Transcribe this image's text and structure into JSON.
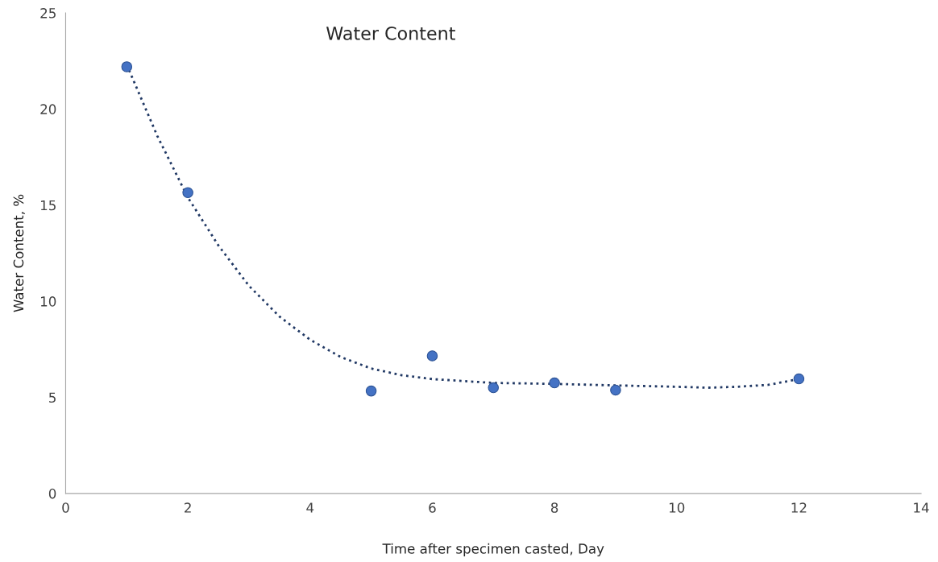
{
  "chart_data": {
    "type": "scatter",
    "title": "Water Content",
    "xlabel": "Time after specimen casted, Day",
    "ylabel": "Water Content, %",
    "xlim": [
      0,
      14
    ],
    "xticks": [
      0,
      2,
      4,
      6,
      8,
      10,
      12,
      14
    ],
    "ylim": [
      0,
      25
    ],
    "yticks": [
      0,
      5,
      10,
      15,
      20,
      25
    ],
    "grid": false,
    "marker": "circle",
    "series": [
      {
        "color": "#4472c4",
        "x": [
          1,
          2,
          5,
          6,
          7,
          8,
          9,
          12
        ],
        "values": [
          22.2,
          15.65,
          5.33,
          7.16,
          5.5,
          5.75,
          5.38,
          5.96
        ]
      },
      {
        "type": "line",
        "color": "#203864",
        "line_style": "dotted",
        "marker": "none",
        "x": [
          1,
          1.5,
          2,
          2.5,
          3,
          3.5,
          4,
          4.5,
          5,
          5.5,
          6,
          7,
          8,
          9,
          10,
          10.5,
          11,
          11.5,
          12
        ],
        "values": [
          22.3,
          18.6,
          15.4,
          12.9,
          10.8,
          9.2,
          8.0,
          7.1,
          6.5,
          6.15,
          5.95,
          5.75,
          5.7,
          5.62,
          5.55,
          5.5,
          5.55,
          5.65,
          5.95
        ]
      }
    ]
  }
}
